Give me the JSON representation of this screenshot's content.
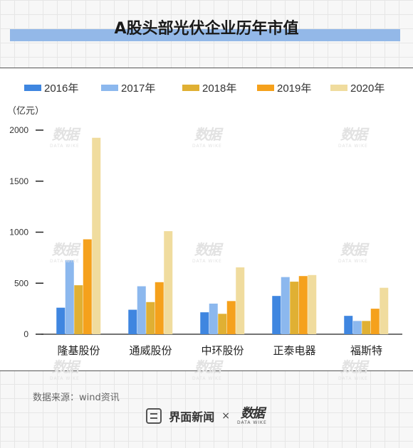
{
  "header": {
    "title": "A股头部光伏企业历年市值"
  },
  "watermark": {
    "text": "数据",
    "sub": "DATA WIKE"
  },
  "chart_data": {
    "type": "bar",
    "title": "A股头部光伏企业历年市值",
    "ylabel": "（亿元）",
    "ylim": [
      0,
      2000
    ],
    "yticks": [
      0,
      500,
      1000,
      1500,
      2000
    ],
    "grid": false,
    "legend_position": "top",
    "categories": [
      "隆基股份",
      "通威股份",
      "中环股份",
      "正泰电器",
      "福斯特"
    ],
    "series": [
      {
        "name": "2016年",
        "color": "#3f86e0",
        "values": [
          260,
          240,
          215,
          375,
          180
        ]
      },
      {
        "name": "2017年",
        "color": "#8cb8ee",
        "values": [
          725,
          470,
          300,
          560,
          130
        ]
      },
      {
        "name": "2018年",
        "color": "#e0b033",
        "values": [
          480,
          315,
          200,
          515,
          130
        ]
      },
      {
        "name": "2019年",
        "color": "#f5a11c",
        "values": [
          930,
          510,
          325,
          570,
          250
        ]
      },
      {
        "name": "2020年",
        "color": "#f0dc9e",
        "values": [
          1925,
          1010,
          655,
          580,
          455
        ]
      }
    ]
  },
  "footer": {
    "source": "数据来源：wind资讯",
    "brand": "界面新闻",
    "times": "×",
    "partner": "数据",
    "partner_sub": "DATA WIKE"
  }
}
